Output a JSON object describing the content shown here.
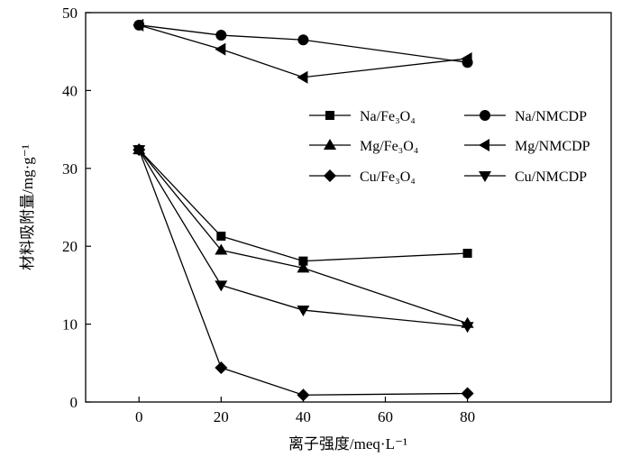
{
  "chart_data": {
    "type": "line",
    "xlabel": "离子强度/meq·L⁻¹",
    "ylabel": "材料吸附量/mg·g⁻¹",
    "xlim": [
      -13,
      115
    ],
    "ylim": [
      0,
      50
    ],
    "xticks": [
      0,
      20,
      40,
      60,
      80
    ],
    "yticks": [
      0,
      10,
      20,
      30,
      40,
      50
    ],
    "grid": false,
    "legend_position": "center-right",
    "series": [
      {
        "name": "Na/Fe₃O₄",
        "marker": "square",
        "x": [
          0,
          20,
          40,
          80
        ],
        "y": [
          32.4,
          21.3,
          18.1,
          19.1
        ]
      },
      {
        "name": "Na/NMCDP",
        "marker": "circle",
        "x": [
          0,
          20,
          40,
          80
        ],
        "y": [
          48.4,
          47.1,
          46.5,
          43.6
        ]
      },
      {
        "name": "Mg/Fe₃O₄",
        "marker": "triangle-up",
        "x": [
          0,
          20,
          40,
          80
        ],
        "y": [
          32.4,
          19.5,
          17.2,
          10.1
        ]
      },
      {
        "name": "Mg/NMCDP",
        "marker": "triangle-left",
        "x": [
          0,
          20,
          40,
          80
        ],
        "y": [
          48.4,
          45.3,
          41.7,
          44.1
        ]
      },
      {
        "name": "Cu/Fe₃O₄",
        "marker": "diamond",
        "x": [
          0,
          20,
          40,
          80
        ],
        "y": [
          32.4,
          4.4,
          0.9,
          1.1
        ]
      },
      {
        "name": "Cu/NMCDP",
        "marker": "triangle-down",
        "x": [
          0,
          20,
          40,
          80
        ],
        "y": [
          32.4,
          15.0,
          11.8,
          9.7
        ]
      }
    ]
  }
}
